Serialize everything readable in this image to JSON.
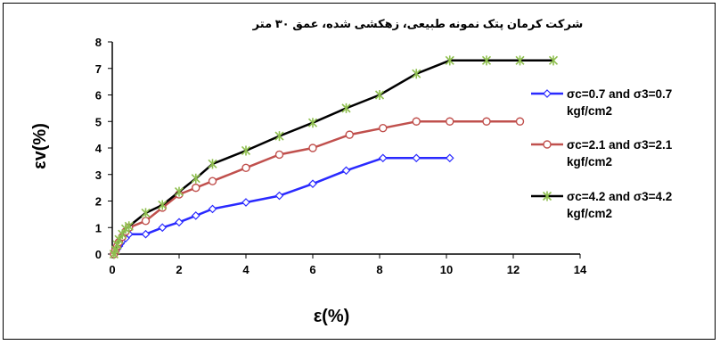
{
  "chart_data": {
    "type": "line",
    "title": "شرکت کرمان پتک نمونه طبیعی، زهکشی شده، عمق ۳۰ متر",
    "xlabel": "ε(%)",
    "ylabel": "εv(%)",
    "xlim": [
      0,
      14
    ],
    "ylim": [
      0,
      8
    ],
    "xticks": [
      "0",
      "2",
      "4",
      "6",
      "8",
      "10",
      "12",
      "14"
    ],
    "yticks": [
      "0",
      "1",
      "2",
      "3",
      "4",
      "5",
      "6",
      "7",
      "8"
    ],
    "legend_position": "right",
    "series": [
      {
        "name": "σc=0.7   and  σ3=0.7",
        "name_line2": "kgf/cm2",
        "color": "#2a2aff",
        "marker": "diamond",
        "x": [
          0.05,
          0.1,
          0.15,
          0.2,
          0.25,
          0.3,
          0.4,
          0.5,
          1.0,
          1.5,
          2.0,
          2.5,
          3.0,
          4.0,
          5.0,
          6.0,
          7.0,
          8.1,
          9.1,
          10.1
        ],
        "y": [
          0.0,
          0.1,
          0.2,
          0.3,
          0.4,
          0.5,
          0.6,
          0.75,
          0.75,
          1.0,
          1.2,
          1.45,
          1.7,
          1.95,
          2.2,
          2.65,
          3.15,
          3.62,
          3.62,
          3.62
        ]
      },
      {
        "name": "σc=2.1   and  σ3=2.1",
        "name_line2": "kgf/cm2",
        "color": "#c0504d",
        "marker": "circle",
        "x": [
          0.05,
          0.1,
          0.15,
          0.2,
          0.3,
          0.4,
          0.5,
          1.0,
          1.5,
          2.0,
          2.5,
          3.0,
          4.0,
          5.0,
          6.0,
          7.1,
          8.1,
          9.1,
          10.1,
          11.2,
          12.2
        ],
        "y": [
          0.0,
          0.15,
          0.3,
          0.45,
          0.65,
          0.85,
          1.0,
          1.25,
          1.75,
          2.25,
          2.5,
          2.75,
          3.25,
          3.75,
          4.0,
          4.5,
          4.75,
          5.0,
          5.0,
          5.0,
          5.0
        ]
      },
      {
        "name": "σc=4.2   and  σ3=4.2",
        "name_line2": "kgf/cm2",
        "color": "#000000",
        "marker": "star",
        "marker_color": "#8fbf4f",
        "x": [
          0.05,
          0.1,
          0.15,
          0.2,
          0.3,
          0.4,
          0.5,
          1.0,
          1.5,
          2.0,
          2.5,
          3.0,
          4.0,
          5.0,
          6.0,
          7.0,
          8.0,
          9.1,
          10.1,
          11.2,
          12.2,
          13.2
        ],
        "y": [
          0.0,
          0.15,
          0.35,
          0.55,
          0.75,
          0.95,
          1.05,
          1.55,
          1.85,
          2.35,
          2.85,
          3.4,
          3.9,
          4.45,
          4.95,
          5.5,
          6.0,
          6.8,
          7.3,
          7.3,
          7.3,
          7.3
        ]
      }
    ]
  }
}
